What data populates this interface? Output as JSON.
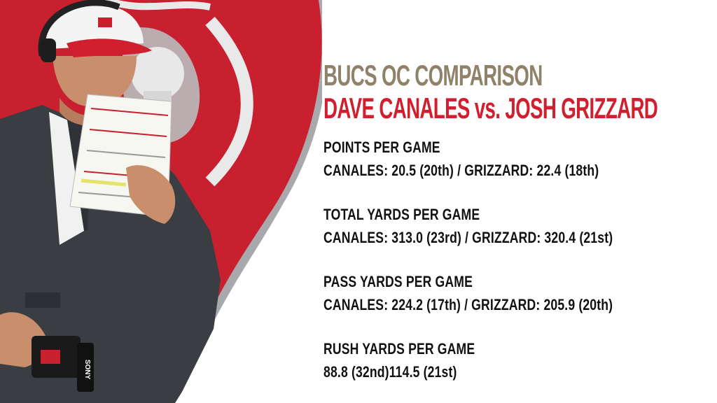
{
  "title": {
    "line1": "BUCS OC COMPARISON",
    "line2": "DAVE CANALES vs. JOSH GRIZZARD"
  },
  "stats": [
    {
      "label": "POINTS PER GAME",
      "value": "CANALES: 20.5 (20th) / GRIZZARD: 22.4 (18th)"
    },
    {
      "label": "TOTAL YARDS PER GAME",
      "value": "CANALES: 313.0 (23rd)  / GRIZZARD: 320.4 (21st)"
    },
    {
      "label": "PASS YARDS PER GAME",
      "value": "CANALES: 224.2 (17th) / GRIZZARD: 205.9 (20th)"
    },
    {
      "label": "RUSH YARDS PER GAME",
      "value": "88.8 (32nd)114.5 (21st)"
    }
  ],
  "image": {
    "cap_logo_text": "",
    "headset_brand": "SONY",
    "colors": {
      "flag_red": "#c8202f",
      "flag_gray": "#a7a9ac",
      "cap_white": "#f4f4f4",
      "cap_visor": "#d01f2e",
      "jacket": "#3a3d42"
    }
  }
}
